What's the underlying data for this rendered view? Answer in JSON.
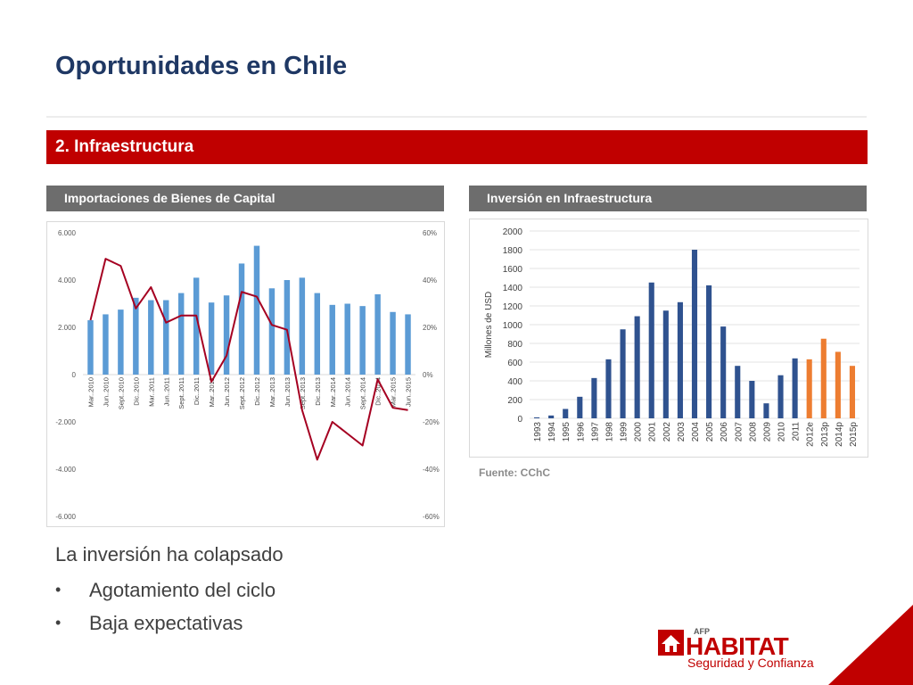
{
  "slide": {
    "title": "Oportunidades en Chile",
    "section": "2. Infraestructura",
    "left_panel_title": "Importaciones de Bienes de Capital",
    "right_panel_title": "Inversión en Infraestructura",
    "source": "Fuente: CChC",
    "takeaway": "La inversión ha colapsado",
    "bullet_glyph": "•",
    "bullets": [
      "Agotamiento del ciclo",
      "Baja expectativas"
    ]
  },
  "logo": {
    "small_text": "AFP",
    "wordmark": "HABITAT",
    "tagline": "Seguridad y Confianza",
    "icon": "house-logo-icon"
  },
  "colors": {
    "title": "#1f3864",
    "banner": "#c00000",
    "panel_header": "#6d6d6d",
    "bar_light_blue": "#5b9bd5",
    "line_dark_red": "#a50021",
    "bar_navy": "#2f528f",
    "bar_orange": "#ed7d31"
  },
  "chart_data": [
    {
      "type": "bar",
      "combo": "bar+line",
      "categories": [
        "Mar..2010",
        "Jun..2010",
        "Sept..2010",
        "Dic..2010",
        "Mar..2011",
        "Jun..2011",
        "Sept..2011",
        "Dic..2011",
        "Mar..2012",
        "Jun..2012",
        "Sept..2012",
        "Dic..2012",
        "Mar..2013",
        "Jun..2013",
        "Sept..2013",
        "Dic..2013",
        "Mar..2014",
        "Jun..2014",
        "Sept..2014",
        "Dic..2014",
        "Mar..2015",
        "Jun..2015"
      ],
      "series": [
        {
          "kind": "bar",
          "axis": "left",
          "values": [
            2300,
            2550,
            2750,
            3250,
            3150,
            3150,
            3450,
            4100,
            3050,
            3350,
            4700,
            5450,
            3650,
            4000,
            4100,
            3450,
            2950,
            3000,
            2900,
            3400,
            2650,
            2550
          ]
        },
        {
          "kind": "line",
          "axis": "right",
          "values": [
            23,
            49,
            46,
            28,
            37,
            22,
            25,
            25,
            -3,
            8,
            35,
            33,
            21,
            19,
            -15,
            -36,
            -20,
            -25,
            -30,
            -2,
            -14,
            -15
          ]
        }
      ],
      "y_left": {
        "ticks": [
          "6.000",
          "4.000",
          "2.000",
          "0",
          "-2.000",
          "-4.000",
          "-6.000"
        ],
        "range": [
          -6000,
          6000
        ]
      },
      "y_right": {
        "ticks": [
          "60%",
          "40%",
          "20%",
          "0%",
          "-20%",
          "-40%",
          "-60%"
        ],
        "range": [
          -60,
          60
        ]
      },
      "grid": false,
      "legend": "none"
    },
    {
      "type": "bar",
      "categories": [
        "1993",
        "1994",
        "1995",
        "1996",
        "1997",
        "1998",
        "1999",
        "2000",
        "2001",
        "2002",
        "2003",
        "2004",
        "2005",
        "2006",
        "2007",
        "2008",
        "2009",
        "2010",
        "2011",
        "2012e",
        "2013p",
        "2014p",
        "2015p"
      ],
      "values": [
        10,
        30,
        100,
        230,
        430,
        630,
        950,
        1090,
        1450,
        1150,
        1240,
        1800,
        1420,
        980,
        560,
        400,
        160,
        460,
        640,
        630,
        850,
        710,
        560
      ],
      "estimated": [
        false,
        false,
        false,
        false,
        false,
        false,
        false,
        false,
        false,
        false,
        false,
        false,
        false,
        false,
        false,
        false,
        false,
        false,
        false,
        true,
        true,
        true,
        true
      ],
      "ylabel": "Millones de USD",
      "y_ticks": [
        "2000",
        "1800",
        "1600",
        "1400",
        "1200",
        "1000",
        "800",
        "600",
        "400",
        "200",
        "0"
      ],
      "ylim": [
        0,
        2000
      ],
      "grid": true,
      "legend": "none"
    }
  ]
}
